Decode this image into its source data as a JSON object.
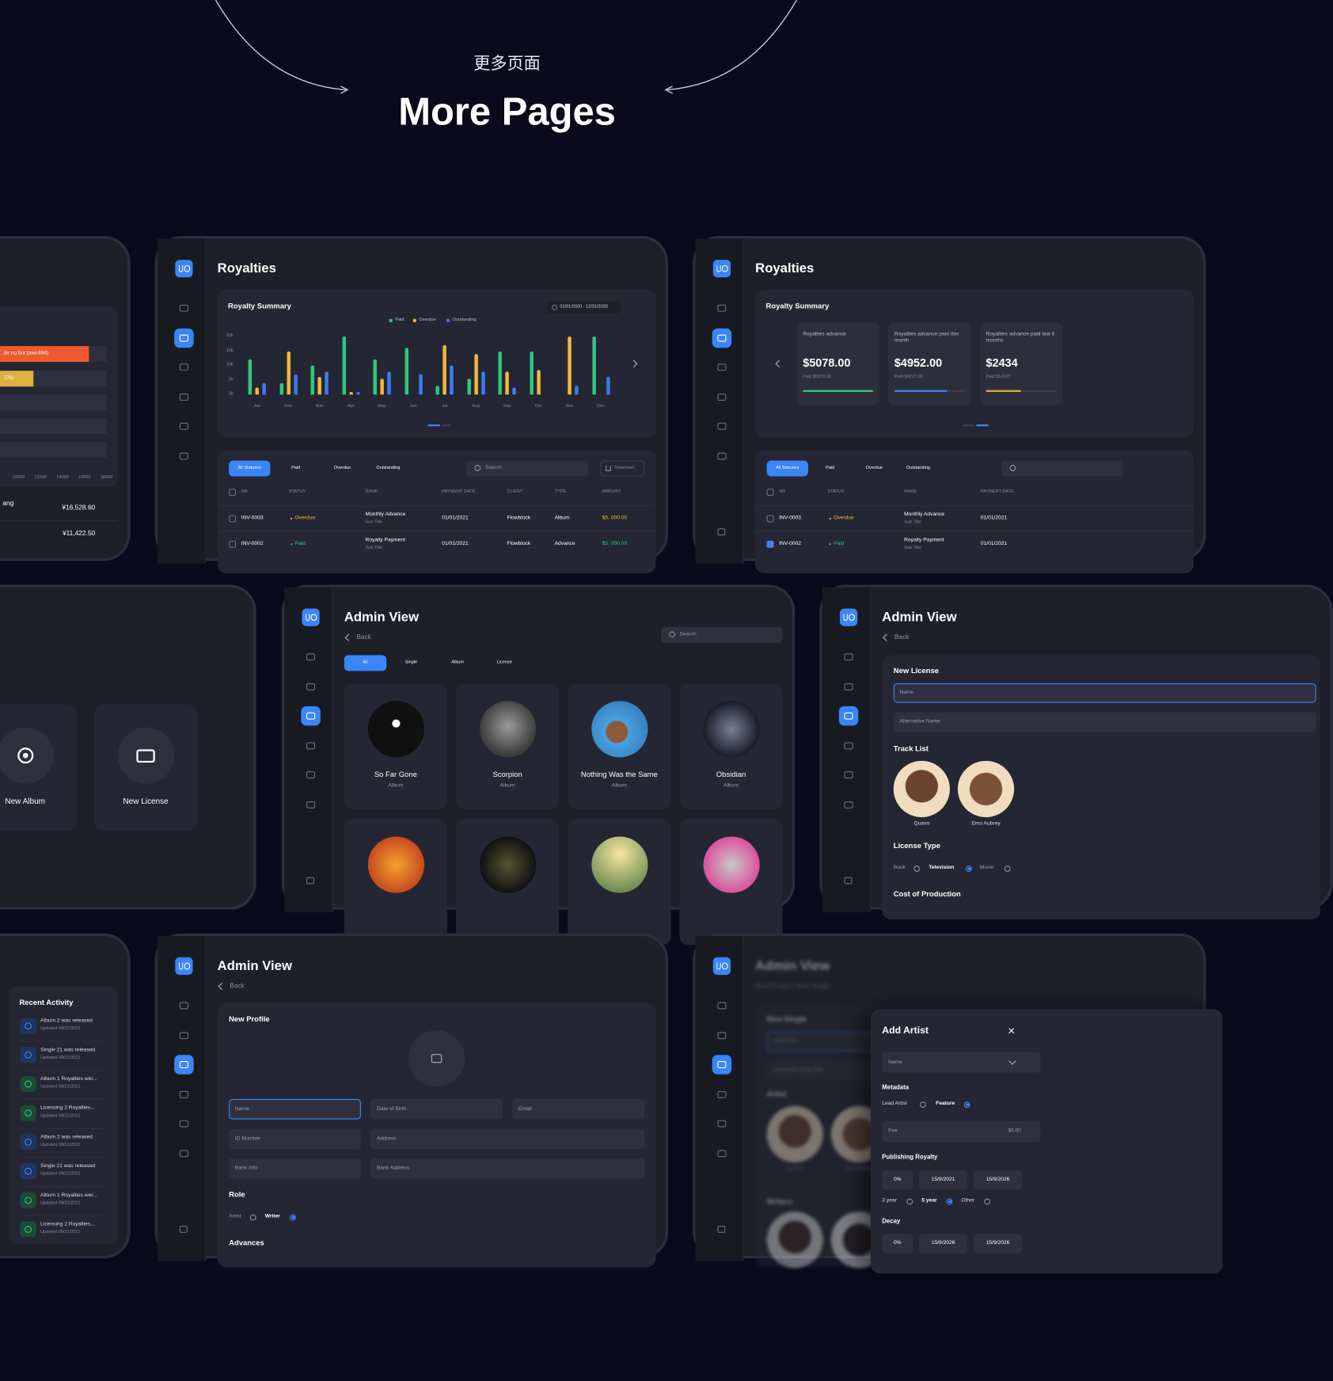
{
  "header": {
    "subtitle": "更多页面",
    "title": "More Pages"
  },
  "royalty_report": {
    "bar_labels": [
      "de nu hoi (awc494)",
      "776)"
    ],
    "axis_labels": [
      "10000",
      "12000",
      "14000",
      "16000",
      "18000"
    ],
    "rows": [
      {
        "label": "ang",
        "amount": "¥16,528.60"
      },
      {
        "amount": "¥11,422.50"
      }
    ]
  },
  "royalties_chart": {
    "title": "Royalties",
    "card_title": "Royalty Summary",
    "date_range": "01/01/2020 - 12/31/2020",
    "chart": {
      "type": "bar",
      "categories": [
        "Jan",
        "Feb",
        "Mar",
        "Apr",
        "May",
        "Jun",
        "Jul",
        "Aug",
        "Sep",
        "Oct",
        "Nov",
        "Dec"
      ],
      "series": [
        {
          "name": "Paid",
          "color": "#2fc97e",
          "values": [
            12000,
            4000,
            10000,
            20000,
            12000,
            16000,
            3000,
            5500,
            15000,
            15000,
            null,
            20000
          ]
        },
        {
          "name": "Overdue",
          "color": "#f4b740",
          "values": [
            2500,
            15000,
            6000,
            1000,
            5500,
            null,
            17000,
            14000,
            8000,
            8500,
            20000,
            null
          ]
        },
        {
          "name": "Outstanding",
          "color": "#3d7bf2",
          "values": [
            4000,
            7000,
            8000,
            1000,
            8000,
            7000,
            10000,
            8000,
            2500,
            null,
            3000,
            6000
          ]
        }
      ],
      "ylim": [
        0,
        20000
      ],
      "yticks": [
        {
          "value": 0,
          "label": "0k"
        },
        {
          "value": 5000,
          "label": "5k"
        },
        {
          "value": 10000,
          "label": "10k"
        },
        {
          "value": 15000,
          "label": "15k"
        },
        {
          "value": 20000,
          "label": "20k"
        }
      ]
    },
    "table": {
      "tabs": [
        "All Statuses",
        "Paid",
        "Overdue",
        "Outstanding"
      ],
      "search": "Search",
      "download": "Download",
      "columns": [
        "NR",
        "STATUS",
        "NAME",
        "PAYMENT DATE",
        "CLIENT",
        "TYPE",
        "AMOUNT"
      ],
      "rows": [
        {
          "nr": "INV-0003",
          "status": "Overdue",
          "name": "Monthly Advance",
          "sub": "Sub Title",
          "date": "01/01/2021",
          "client": "Flowblock",
          "type": "Album",
          "amount": "$5, 000.00"
        },
        {
          "nr": "INV-0002",
          "status": "Paid",
          "name": "Royalty Payment",
          "sub": "Sub Title",
          "date": "01/01/2021",
          "client": "Flowblock",
          "type": "Advance",
          "amount": "$5, 000.00"
        }
      ]
    }
  },
  "royalties_summary": {
    "title": "Royalties",
    "card_title": "Royalty Summary",
    "cards": [
      {
        "label": "Royalties advance",
        "amount": "$5078.00",
        "paid": "Paid $5078.00"
      },
      {
        "label": "Royalties advance paid this month",
        "amount": "$4952.00",
        "paid": "Paid $4227.00"
      },
      {
        "label": "Royalties advance paid last 6 months",
        "amount": "$2434",
        "paid": "Paid $14327"
      }
    ],
    "table": {
      "tabs": [
        "All Statuses",
        "Paid",
        "Overdue",
        "Outstanding"
      ],
      "columns": [
        "NR",
        "STATUS",
        "NAME",
        "PAYMENT DATE"
      ],
      "rows": [
        {
          "nr": "INV-0003",
          "status": "Overdue",
          "name": "Monthly Advance",
          "sub": "Sub Title",
          "date": "01/01/2021"
        },
        {
          "nr": "INV-0002",
          "status": "Paid",
          "name": "Royalty Payment",
          "sub": "Sub Title",
          "date": "01/01/2021"
        }
      ]
    }
  },
  "new_items": {
    "cards": [
      "New Album",
      "New License"
    ]
  },
  "admin_albums": {
    "title": "Admin View",
    "back": "Back",
    "search": "Search",
    "tabs": [
      "All",
      "Single",
      "Album",
      "License"
    ],
    "albums": [
      {
        "name": "So Far Gone",
        "kind": "Album"
      },
      {
        "name": "Scorpion",
        "kind": "Album"
      },
      {
        "name": "Nothing Was the Same",
        "kind": "Album"
      },
      {
        "name": "Obsidian",
        "kind": "Album"
      }
    ]
  },
  "admin_license": {
    "title": "Admin View",
    "back": "Back",
    "card_title": "New License",
    "fields": [
      "Name",
      "Alternative Name"
    ],
    "track_list_label": "Track List",
    "artists": [
      "Quavo",
      "Emo Aubrey"
    ],
    "license_type_label": "License Type",
    "license_types": [
      "Book",
      "Television",
      "Movie"
    ],
    "cost_label": "Cost of Production"
  },
  "recent_activity": {
    "title": "Recent Activity",
    "items": [
      {
        "text": "Album 2 was released",
        "date": "Updated 09/21/2021"
      },
      {
        "text": "Single 21 was released",
        "date": "Updated 09/21/2021"
      },
      {
        "text": "Album 1 Royalties wer...",
        "date": "Updated 09/21/2021"
      },
      {
        "text": "Licensing 2 Royalties...",
        "date": "Updated 09/21/2021"
      },
      {
        "text": "Album 2 was released",
        "date": "Updated 09/21/2021"
      },
      {
        "text": "Single 21 was released",
        "date": "Updated 09/21/2021"
      },
      {
        "text": "Album 1 Royalties wer...",
        "date": "Updated 09/21/2021"
      },
      {
        "text": "Licensing 2 Royalties...",
        "date": "Updated 09/21/2021"
      }
    ]
  },
  "admin_profile": {
    "title": "Admin View",
    "back": "Back",
    "card_title": "New Profile",
    "fields": [
      "Name",
      "Date of Birth",
      "Email",
      "ID Number",
      "Address",
      "Bank Info",
      "Bank Address"
    ],
    "role_label": "Role",
    "roles": [
      "Artist",
      "Writer"
    ],
    "advances_label": "Advances"
  },
  "add_artist": {
    "background": {
      "title": "Admin View",
      "breadcrumb": "New Project / New Single",
      "card_title": "New Single",
      "fields": [
        "Song Title",
        "Alternative Song Title"
      ],
      "artist_label": "Artist",
      "artists": [
        "Quavo",
        "Emo Aubrey"
      ],
      "writers_label": "Writers"
    },
    "modal": {
      "title": "Add Artist",
      "select": "Name",
      "metadata_label": "Metadata",
      "roles": [
        "Lead Artist",
        "Feature"
      ],
      "fee_label": "Fee",
      "fee_value": "$0.00",
      "publishing_label": "Publishing Royalty",
      "publishing": [
        "0%",
        "15/9/2021",
        "15/9/2026"
      ],
      "terms": [
        "3 year",
        "5 year",
        "Other"
      ],
      "decay_label": "Decay",
      "decay": [
        "0%",
        "15/9/2026",
        "15/9/2026"
      ]
    }
  }
}
